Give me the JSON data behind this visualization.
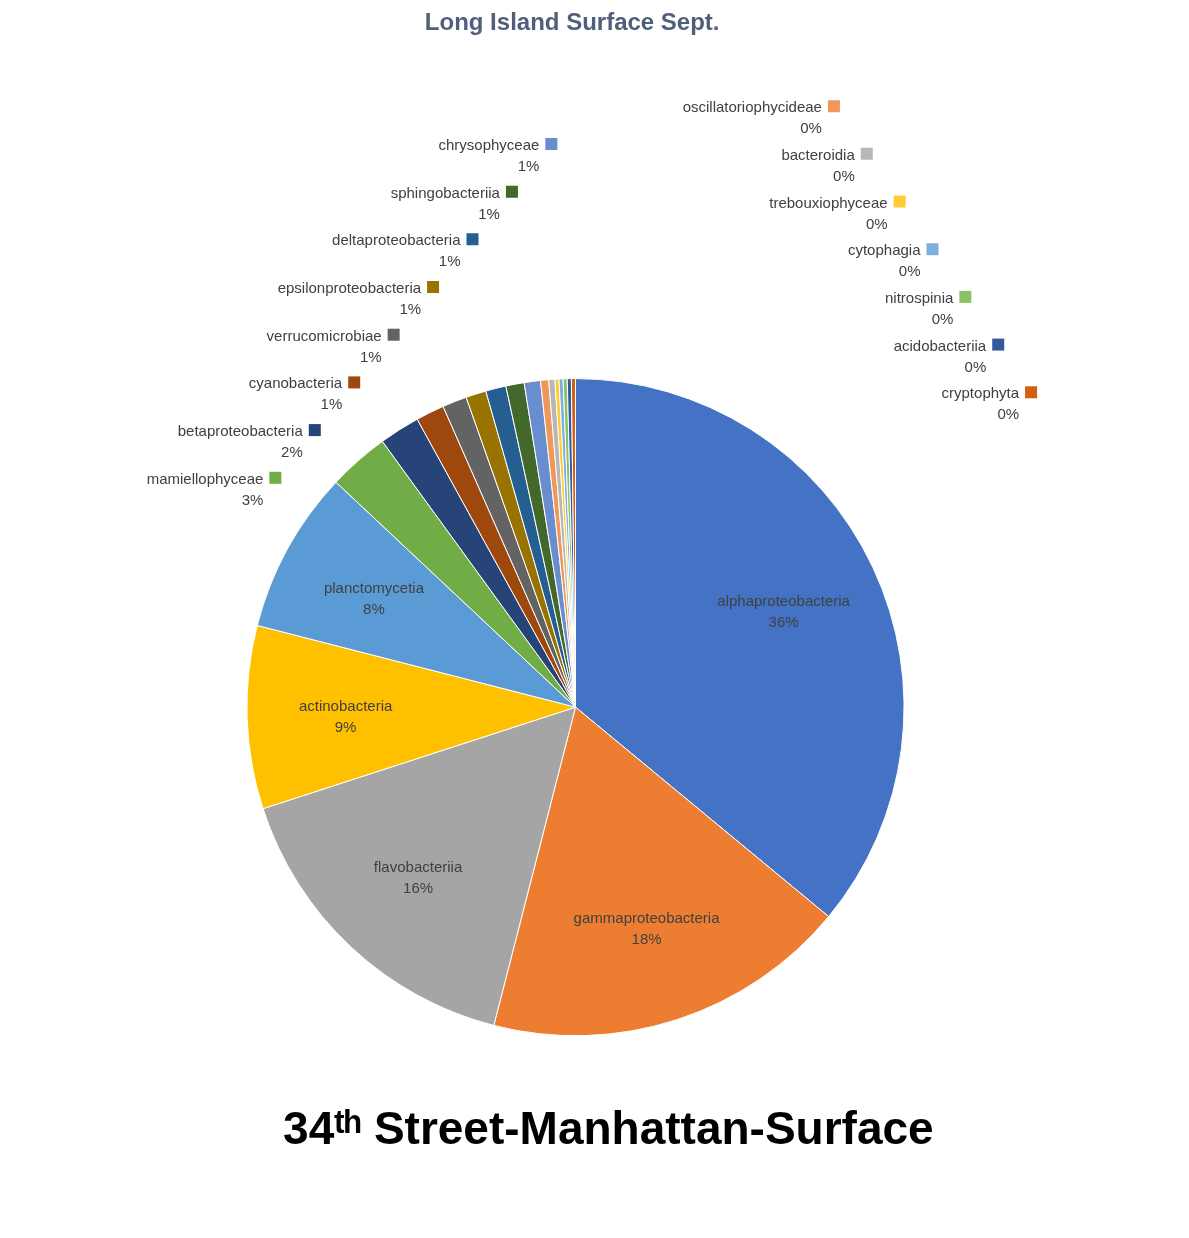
{
  "chart_data": {
    "type": "pie",
    "title": "Long Island  Surface Sept.",
    "categories": [
      "alphaproteobacteria",
      "gammaproteobacteria",
      "flavobacteriia",
      "actinobacteria",
      "planctomycetia",
      "mamiellophyceae",
      "betaproteobacteria",
      "cyanobacteria",
      "verrucomicrobiae",
      "epsilonproteobacteria",
      "deltaproteobacteria",
      "sphingobacteriia",
      "chrysophyceae",
      "oscillatoriophycideae",
      "bacteroidia",
      "trebouxiophyceae",
      "cytophagia",
      "nitrospinia",
      "acidobacteriia",
      "cryptophyta"
    ],
    "values": [
      36,
      18,
      16,
      9,
      8,
      3,
      2.0,
      1.4,
      1.2,
      1.0,
      1.0,
      0.9,
      0.8,
      0.4,
      0.3,
      0.2,
      0.2,
      0.2,
      0.2,
      0.2
    ],
    "value_labels": [
      "36%",
      "18%",
      "16%",
      "9%",
      "8%",
      "3%",
      "2%",
      "1%",
      "1%",
      "1%",
      "1%",
      "1%",
      "1%",
      "0%",
      "0%",
      "0%",
      "0%",
      "0%",
      "0%",
      "0%"
    ],
    "colors": [
      "#4472c4",
      "#ed7d31",
      "#a5a5a5",
      "#ffc000",
      "#5b9bd5",
      "#70ad47",
      "#264478",
      "#9e480e",
      "#636363",
      "#997300",
      "#255e91",
      "#43682b",
      "#698ed0",
      "#f1975a",
      "#b7b7b7",
      "#ffcd33",
      "#7cafdd",
      "#8cc168",
      "#335aa1",
      "#d26012"
    ],
    "legend": "top",
    "annotations": [
      "34ᵗʰ Street-Manhattan-Surface"
    ]
  }
}
